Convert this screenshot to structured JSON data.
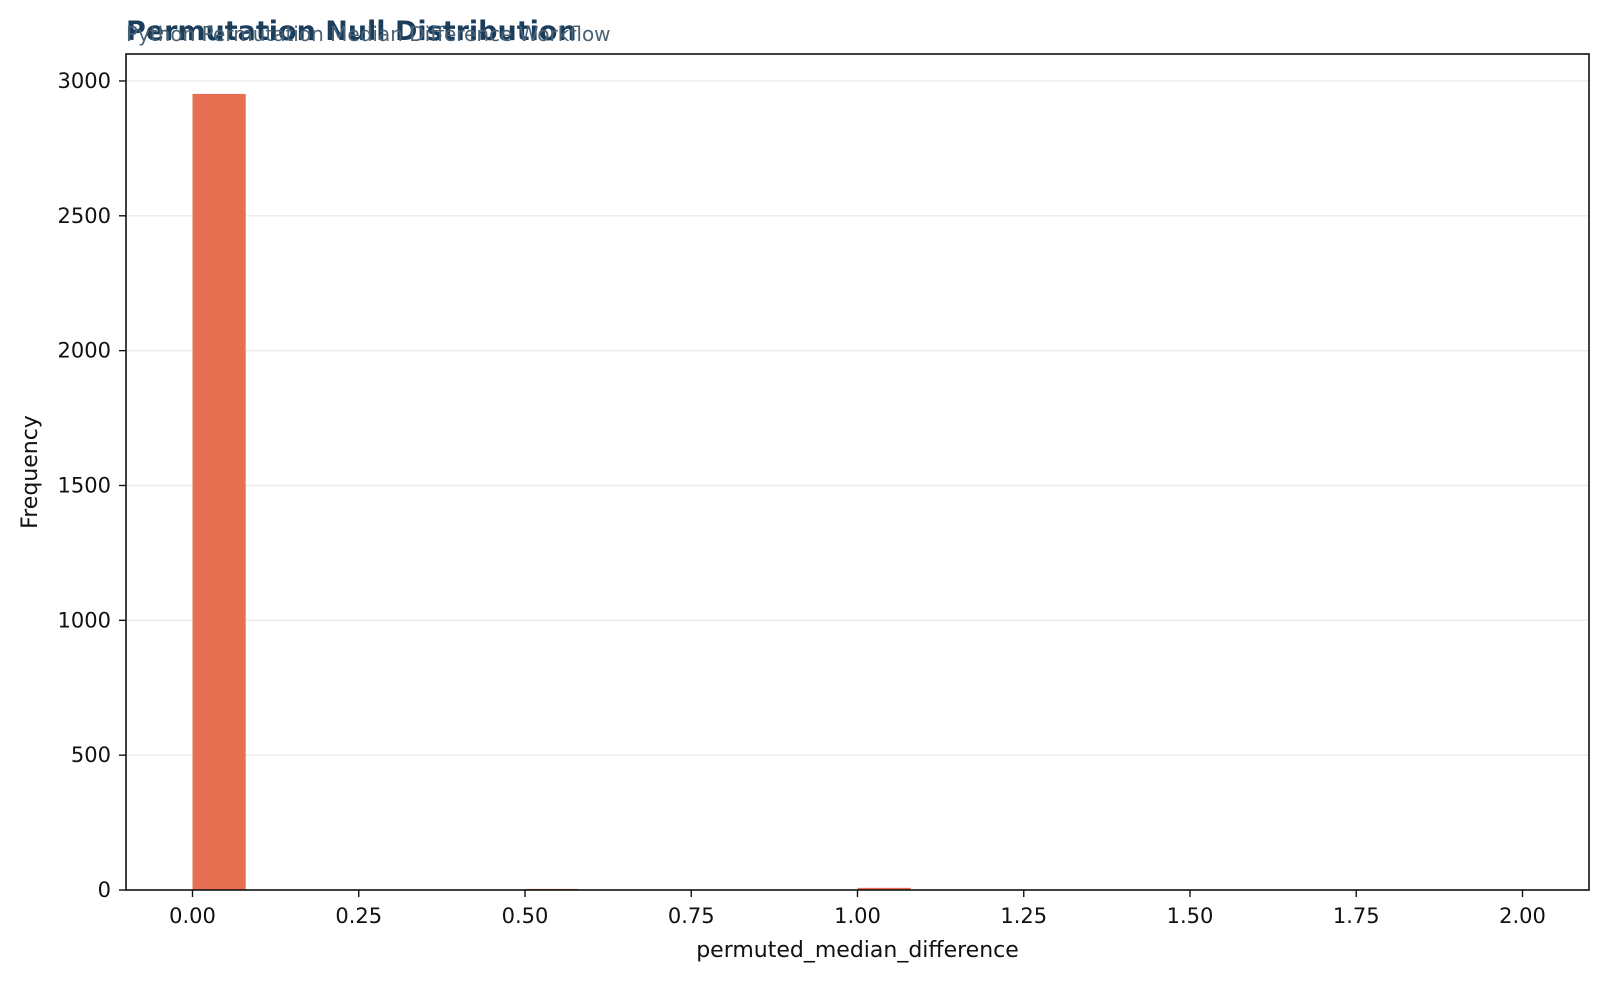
{
  "colors": {
    "bar": "#e76f51",
    "title": "#1a3d5c",
    "subtitle": "#4a6276",
    "grid": "#ebebeb",
    "axis": "#111111"
  },
  "chart_data": {
    "type": "bar",
    "title": "Permutation Null Distribution",
    "subtitle": "Python Permutation Median Difference Workflow",
    "xlabel": "permuted_median_difference",
    "ylabel": "Frequency",
    "xlim": [
      -0.1,
      2.1
    ],
    "ylim": [
      0,
      3100
    ],
    "xticks": [
      0.0,
      0.25,
      0.5,
      0.75,
      1.0,
      1.25,
      1.5,
      1.75,
      2.0
    ],
    "xtick_labels": [
      "0.00",
      "0.25",
      "0.50",
      "0.75",
      "1.00",
      "1.25",
      "1.50",
      "1.75",
      "2.00"
    ],
    "yticks": [
      0,
      500,
      1000,
      1500,
      2000,
      2500,
      3000
    ],
    "ytick_labels": [
      "0",
      "500",
      "1000",
      "1500",
      "2000",
      "2500",
      "3000"
    ],
    "grid": "horizontal",
    "legend": "none",
    "bins": [
      {
        "x0": 0.0,
        "x1": 0.08,
        "count": 2952
      },
      {
        "x0": 0.5,
        "x1": 0.58,
        "count": 4
      },
      {
        "x0": 1.0,
        "x1": 1.08,
        "count": 8
      }
    ]
  }
}
